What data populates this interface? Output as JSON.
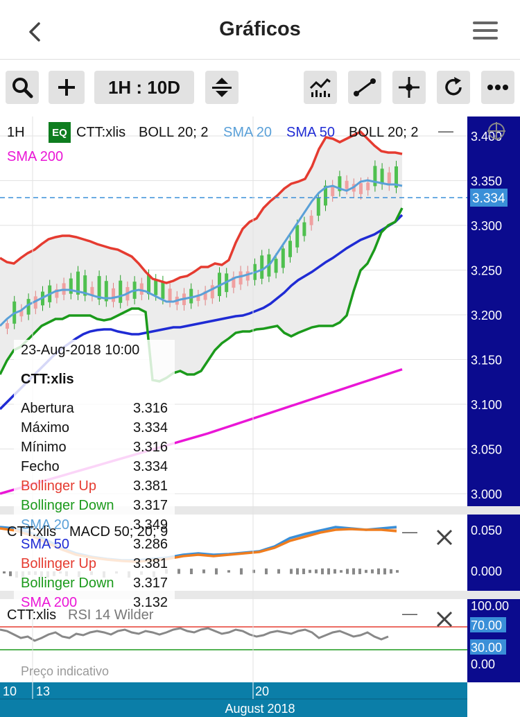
{
  "header": {
    "title": "Gráficos",
    "back_icon": "chevron-left-icon",
    "menu_icon": "hamburger-menu-icon"
  },
  "toolbar": {
    "interval_label": "1H : 10D",
    "buttons": [
      "search-icon",
      "plus-icon",
      "interval",
      "expand-vertical-icon",
      "indicators-icon",
      "draw-line-icon",
      "crosshair-icon",
      "refresh-icon",
      "more-icon"
    ]
  },
  "main_panel": {
    "timeframe": "1H",
    "eq_badge": "EQ",
    "symbol": "CTT:xlis",
    "legend": [
      {
        "text": "BOLL 20; 2",
        "color": "#111111"
      },
      {
        "text": "SMA 20",
        "color": "#5aa0d8"
      },
      {
        "text": "SMA 50",
        "color": "#1f2bd4"
      },
      {
        "text": "BOLL 20; 2",
        "color": "#111111"
      }
    ],
    "legend2": {
      "text": "SMA 200",
      "color": "#ea16d6"
    },
    "minimize_symbol": "—",
    "crosshair_value": "3.334"
  },
  "info": {
    "date": "23-Aug-2018 10:00",
    "symbol": "CTT:xlis",
    "rows": [
      {
        "label": "Abertura",
        "value": "3.316",
        "color": "#111111"
      },
      {
        "label": "Máximo",
        "value": "3.334",
        "color": "#111111"
      },
      {
        "label": "Mínimo",
        "value": "3.316",
        "color": "#111111"
      },
      {
        "label": "Fecho",
        "value": "3.334",
        "color": "#111111"
      },
      {
        "label": "Bollinger Up",
        "value": "3.381",
        "color": "#e53b30"
      },
      {
        "label": "Bollinger Down",
        "value": "3.317",
        "color": "#1b9a1b"
      },
      {
        "label": "SMA 20",
        "value": "3.349",
        "color": "#5aa0d8"
      },
      {
        "label": "SMA 50",
        "value": "3.286",
        "color": "#1f2bd4"
      },
      {
        "label": "Bollinger Up",
        "value": "3.381",
        "color": "#e53b30"
      },
      {
        "label": "Bollinger Down",
        "value": "3.317",
        "color": "#1b9a1b"
      },
      {
        "label": "SMA 200",
        "value": "3.132",
        "color": "#ea16d6"
      }
    ]
  },
  "price_axis": [
    "3.400",
    "3.350",
    "3.300",
    "3.250",
    "3.200",
    "3.150",
    "3.100",
    "3.050",
    "3.000"
  ],
  "macd_panel": {
    "symbol": "CTT:xlis",
    "label": "MACD 50; 20; 9",
    "axis": [
      "0.050",
      "0.000"
    ]
  },
  "rsi_panel": {
    "symbol": "CTT:xlis",
    "label": "RSI 14 Wilder",
    "axis": [
      "100.00",
      "70.00",
      "30.00",
      "0.00"
    ]
  },
  "footnote": "Preço indicativo",
  "x_axis": {
    "ticks": [
      "10",
      "13",
      "20"
    ],
    "month": "August 2018"
  },
  "colors": {
    "sidebar": "#0b0b8e",
    "timeline": "#0b7ea8",
    "boll_up": "#e53b30",
    "boll_down": "#1b9a1b",
    "sma20": "#5aa0d8",
    "sma50": "#1f2bd4",
    "sma200": "#ea16d6",
    "macd": "#3a8fd8",
    "signal": "#f07d1e",
    "rsi": "#888888"
  }
}
